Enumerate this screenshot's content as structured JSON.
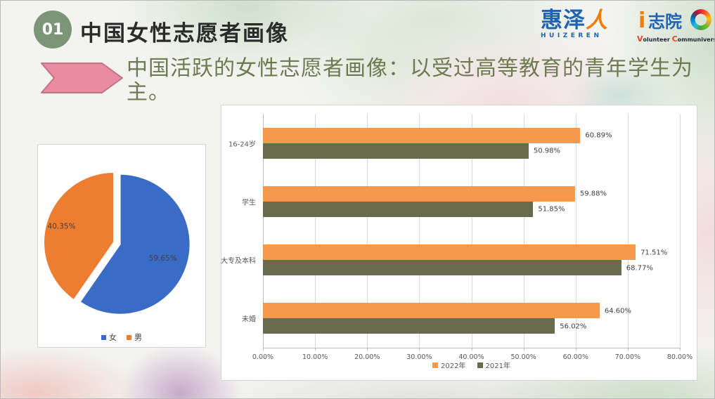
{
  "slide": {
    "badge": "01",
    "title": "中国女性志愿者画像",
    "headline": "中国活跃的女性志愿者画像：以受过高等教育的青年学生为主。"
  },
  "logos": {
    "huizeren": {
      "name_blue": "惠泽",
      "name_orange": "人",
      "latin": "HUIZEREN"
    },
    "izhiyuan": {
      "i_mark": "i",
      "name": "志院",
      "tagline_v": "V",
      "tagline_olunteer": "olunteer",
      "tagline_c": "C",
      "tagline_ommuniversity": "ommuniversity"
    }
  },
  "colors": {
    "badge_green": "#7d9577",
    "headline_olive": "#6e7a50",
    "arrow_pink": "#e98ba1",
    "arrow_outline": "#c2728a",
    "pie_female_blue": "#3a6cc6",
    "pie_male_orange": "#ed7d31",
    "bar_2022_orange": "#f5994d",
    "bar_2021_olive": "#686a4c"
  },
  "chart_data": [
    {
      "type": "pie",
      "name": "gender-share-pie",
      "labels": [
        "女",
        "男"
      ],
      "values": [
        59.65,
        40.35
      ],
      "data_labels": [
        "59.65%",
        "40.35%"
      ],
      "colors": [
        "#3a6cc6",
        "#ed7d31"
      ],
      "legend_position": "bottom",
      "exploded_slice": "女"
    },
    {
      "type": "bar",
      "name": "active-volunteer-profile-bars",
      "orientation": "horizontal",
      "categories": [
        "16-24岁",
        "学生",
        "大专及本科",
        "未婚"
      ],
      "series": [
        {
          "name": "2022年",
          "color": "#f5994d",
          "values": [
            60.89,
            59.88,
            71.51,
            64.6
          ]
        },
        {
          "name": "2021年",
          "color": "#686a4c",
          "values": [
            50.98,
            51.85,
            68.77,
            56.02
          ]
        }
      ],
      "xlim": [
        0,
        80
      ],
      "x_ticks": [
        "0.00%",
        "10.00%",
        "20.00%",
        "30.00%",
        "40.00%",
        "50.00%",
        "60.00%",
        "70.00%",
        "80.00%"
      ],
      "grid": true,
      "legend_position": "bottom"
    }
  ]
}
